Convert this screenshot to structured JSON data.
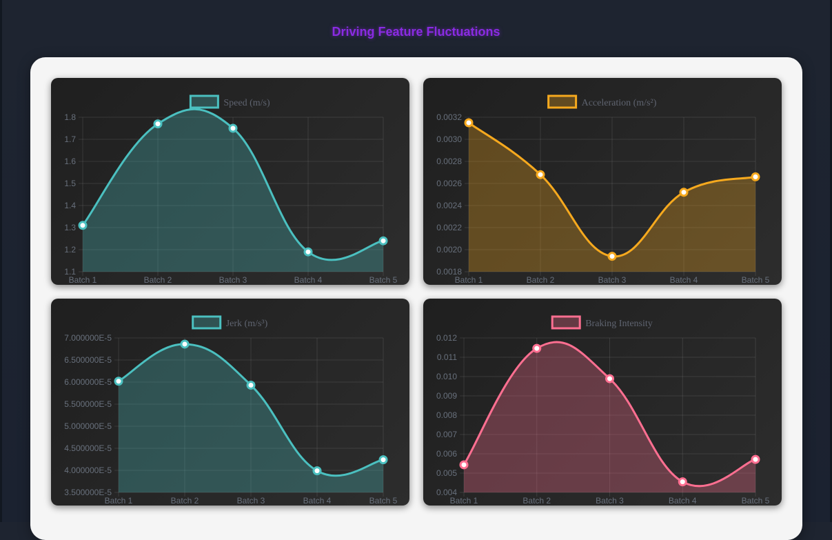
{
  "page": {
    "title": "Driving Feature Fluctuations"
  },
  "chart_data": [
    {
      "id": "speed",
      "type": "line",
      "fill": true,
      "color": "#4bc0c0",
      "categories": [
        "Batch 1",
        "Batch 2",
        "Batch 3",
        "Batch 4",
        "Batch 5"
      ],
      "series": [
        {
          "name": "Speed (m/s)",
          "values": [
            1.31,
            1.77,
            1.75,
            1.19,
            1.24
          ]
        }
      ],
      "ylim": [
        1.1,
        1.8
      ],
      "yticks": [
        1.1,
        1.2,
        1.3,
        1.4,
        1.5,
        1.6,
        1.7,
        1.8
      ],
      "ytick_labels": [
        "1.1",
        "1.2",
        "1.3",
        "1.4",
        "1.5",
        "1.6",
        "1.7",
        "1.8"
      ],
      "grid": true,
      "legend": "top-center"
    },
    {
      "id": "acceleration",
      "type": "line",
      "fill": true,
      "color": "#f6a91e",
      "categories": [
        "Batch 1",
        "Batch 2",
        "Batch 3",
        "Batch 4",
        "Batch 5"
      ],
      "series": [
        {
          "name": "Acceleration (m/s²)",
          "values": [
            0.00315,
            0.00268,
            0.00194,
            0.00252,
            0.00266
          ]
        }
      ],
      "ylim": [
        0.0018,
        0.0032
      ],
      "yticks": [
        0.0018,
        0.002,
        0.0022,
        0.0024,
        0.0026,
        0.0028,
        0.003,
        0.0032
      ],
      "ytick_labels": [
        "0.0018",
        "0.0020",
        "0.0022",
        "0.0024",
        "0.0026",
        "0.0028",
        "0.0030",
        "0.0032"
      ],
      "grid": true,
      "legend": "top-center"
    },
    {
      "id": "jerk",
      "type": "line",
      "fill": true,
      "color": "#4bc0c0",
      "categories": [
        "Batch 1",
        "Batch 2",
        "Batch 3",
        "Batch 4",
        "Batch 5"
      ],
      "series": [
        {
          "name": "Jerk (m/s³)",
          "values": [
            6.02e-05,
            6.86e-05,
            5.93e-05,
            3.99e-05,
            4.24e-05
          ]
        }
      ],
      "ylim": [
        3.5e-05,
        7e-05
      ],
      "yticks": [
        3.5e-05,
        4e-05,
        4.5e-05,
        5e-05,
        5.5e-05,
        6e-05,
        6.5e-05,
        7e-05
      ],
      "ytick_labels": [
        "3.500000E-5",
        "4.000000E-5",
        "4.500000E-5",
        "5.000000E-5",
        "5.500000E-5",
        "6.000000E-5",
        "6.500000E-5",
        "7.000000E-5"
      ],
      "grid": true,
      "legend": "top-center"
    },
    {
      "id": "braking",
      "type": "line",
      "fill": true,
      "color": "#ff6f91",
      "categories": [
        "Batch 1",
        "Batch 2",
        "Batch 3",
        "Batch 4",
        "Batch 5"
      ],
      "series": [
        {
          "name": "Braking Intensity",
          "values": [
            0.00543,
            0.01146,
            0.00989,
            0.00455,
            0.00571
          ]
        }
      ],
      "ylim": [
        0.004,
        0.012
      ],
      "yticks": [
        0.004,
        0.005,
        0.006,
        0.007,
        0.008,
        0.009,
        0.01,
        0.011,
        0.012
      ],
      "ytick_labels": [
        "0.004",
        "0.005",
        "0.006",
        "0.007",
        "0.008",
        "0.009",
        "0.010",
        "0.011",
        "0.012"
      ],
      "grid": true,
      "legend": "top-center"
    }
  ]
}
